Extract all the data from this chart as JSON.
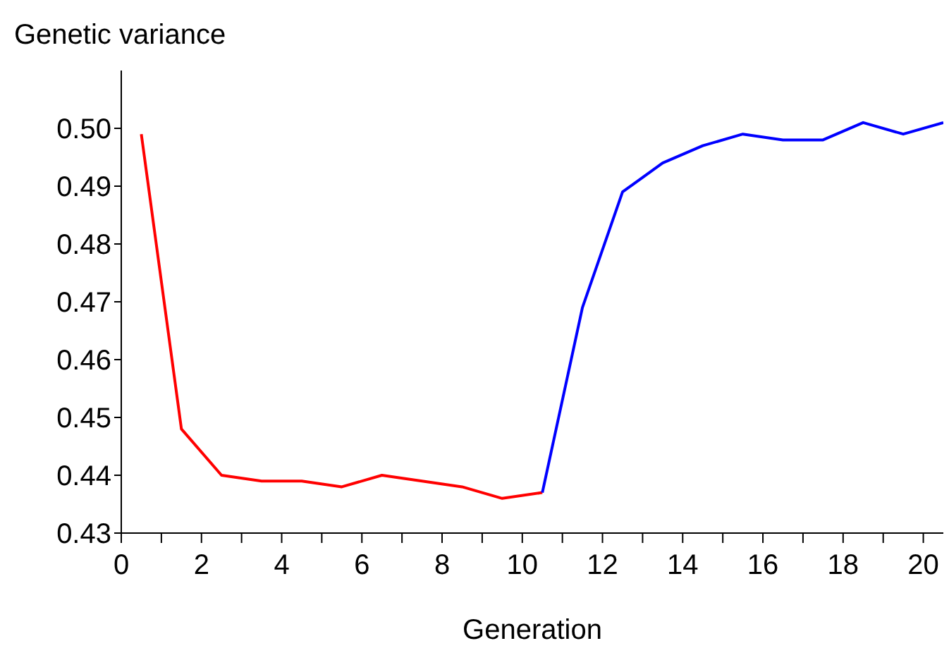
{
  "chart_data": {
    "type": "line",
    "ylabel": "Genetic variance",
    "xlabel": "Generation",
    "series": [
      {
        "color": "#ff0000",
        "x": [
          0.5,
          1.5,
          2.5,
          3.5,
          4.5,
          5.5,
          6.5,
          7.5,
          8.5,
          9.5,
          10.5
        ],
        "values": [
          0.499,
          0.448,
          0.44,
          0.439,
          0.439,
          0.438,
          0.44,
          0.439,
          0.438,
          0.436,
          0.437
        ]
      },
      {
        "color": "#0000ff",
        "x": [
          10.5,
          11.5,
          12.5,
          13.5,
          14.5,
          15.5,
          16.5,
          17.5,
          18.5,
          19.5,
          20.5
        ],
        "values": [
          0.437,
          0.469,
          0.489,
          0.494,
          0.497,
          0.499,
          0.498,
          0.498,
          0.501,
          0.499,
          0.501
        ]
      }
    ],
    "xlim": [
      0,
      20.5
    ],
    "xticks": [
      0,
      {
        "value": 1,
        "label": null
      },
      2,
      {
        "value": 3,
        "label": null
      },
      4,
      {
        "value": 5,
        "label": null
      },
      6,
      {
        "value": 7,
        "label": null
      },
      8,
      {
        "value": 9,
        "label": null
      },
      10,
      {
        "value": 11,
        "label": null
      },
      12,
      {
        "value": 13,
        "label": null
      },
      14,
      {
        "value": 15,
        "label": null
      },
      16,
      {
        "value": 17,
        "label": null
      },
      18,
      {
        "value": 19,
        "label": null
      },
      20
    ],
    "ylim": [
      0.43,
      0.51
    ],
    "yticks": [
      0.43,
      0.44,
      0.45,
      0.46,
      0.47,
      0.48,
      0.49,
      {
        "value": 0.5,
        "label": "0.50"
      }
    ],
    "grid": false,
    "legend": false,
    "marker": "none",
    "line_style": "solid"
  }
}
